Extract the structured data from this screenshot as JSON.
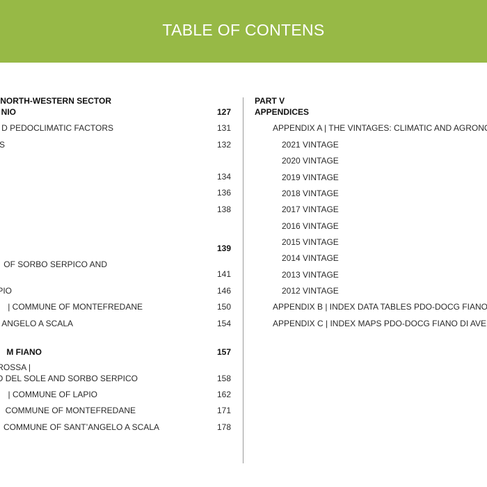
{
  "header": {
    "title": "TABLE OF CONTENS",
    "color": "#97b946"
  },
  "left": {
    "section_line1": "NORTH-WESTERN SECTOR",
    "section_line2": "NIO",
    "section_page": "127",
    "items": [
      {
        "text": "D PEDOCLIMATIC FACTORS",
        "page": "131"
      },
      {
        "text": "S",
        "page": "132"
      },
      {
        "text": "",
        "page": "134"
      },
      {
        "text": "",
        "page": "136"
      },
      {
        "text": "",
        "page": "138"
      }
    ],
    "section2_page": "139",
    "items2": [
      {
        "text": "OF SORBO SERPICO AND",
        "page": "141"
      },
      {
        "text": "PIO",
        "page": "146"
      },
      {
        "text": "| COMMUNE OF MONTEFREDANE",
        "page": "150"
      },
      {
        "text": "ANGELO A SCALA",
        "page": "154"
      }
    ],
    "section3": "M FIANO",
    "section3_page": "157",
    "items3": [
      {
        "text_line1": "ROSSA |",
        "text": "O DEL SOLE AND SORBO SERPICO",
        "page": "158"
      },
      {
        "text": "| COMMUNE OF LAPIO",
        "page": "162"
      },
      {
        "text": "COMMUNE OF MONTEFREDANE",
        "page": "171"
      },
      {
        "text": "COMMUNE OF SANT’ANGELO A SCALA",
        "page": "178"
      }
    ]
  },
  "right": {
    "part": "PART V",
    "part_title": "APPENDICES",
    "appendix_a": "APPENDIX A | THE VINTAGES: CLIMATIC AND AGRONOMIC",
    "vintages": [
      "2021 VINTAGE",
      "2020 VINTAGE",
      "2019 VINTAGE",
      "2018 VINTAGE",
      "2017 VINTAGE",
      "2016 VINTAGE",
      "2015 VINTAGE",
      "2014 VINTAGE",
      "2013 VINTAGE",
      "2012 VINTAGE"
    ],
    "appendix_b": "APPENDIX B | INDEX DATA TABLES PDO-DOCG FIANO",
    "appendix_c": "APPENDIX C | INDEX MAPS PDO-DOCG FIANO DI AVELLINO"
  }
}
